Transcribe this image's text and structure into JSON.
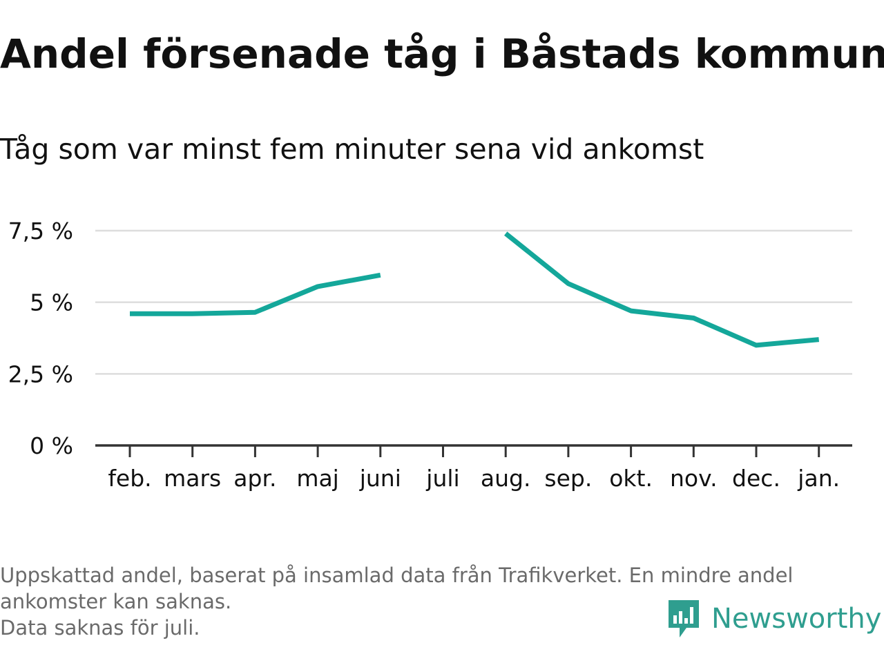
{
  "header": {
    "title": "Andel försenade tåg i Båstads kommun",
    "subtitle": "Tåg som var minst fem minuter sena vid ankomst"
  },
  "chart_data": {
    "type": "line",
    "title": "Andel försenade tåg i Båstads kommun",
    "subtitle": "Tåg som var minst fem minuter sena vid ankomst",
    "categories": [
      "feb.",
      "mars",
      "apr.",
      "maj",
      "juni",
      "juli",
      "aug.",
      "sep.",
      "okt.",
      "nov.",
      "dec.",
      "jan."
    ],
    "series": [
      {
        "values": [
          4.6,
          4.6,
          4.65,
          5.55,
          5.95,
          null,
          7.4,
          5.65,
          4.7,
          4.45,
          3.5,
          3.7
        ],
        "color": "#14a79a"
      }
    ],
    "y_ticks": [
      0,
      2.5,
      5,
      7.5
    ],
    "y_tick_labels": [
      "0 %",
      "2,5 %",
      "5 %",
      "7,5 %"
    ],
    "ylim": [
      0,
      7.5
    ],
    "xlabel": "",
    "ylabel": "",
    "grid": true,
    "legend": "none"
  },
  "footnote": {
    "line1": "Uppskattad andel, baserat på insamlad data från Trafikverket. En mindre andel",
    "line2": "ankomster kan saknas.",
    "line3": "Data saknas för juli."
  },
  "brand": {
    "name": "Newsworthy",
    "icon": "newsworthy-logo-icon",
    "color": "#2f9e8f"
  },
  "colors": {
    "line": "#14a79a",
    "grid": "#dddddd",
    "axis": "#333333",
    "text": "#111111",
    "muted": "#6a6a6a"
  }
}
